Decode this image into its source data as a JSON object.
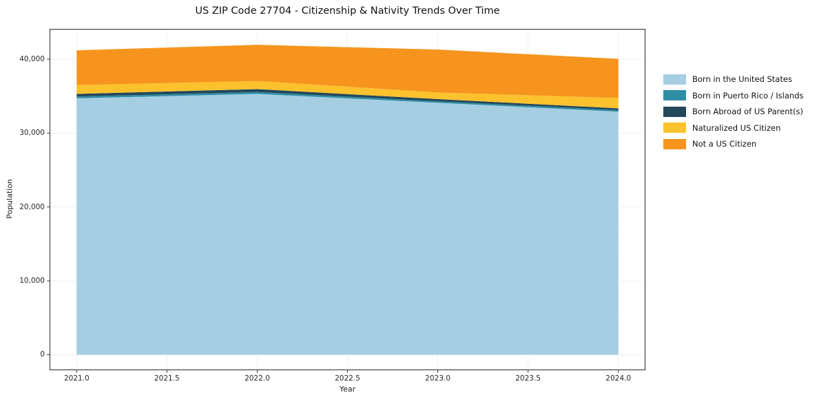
{
  "chart_data": {
    "type": "area",
    "stacked": true,
    "title": "US ZIP Code 27704 - Citizenship & Nativity Trends Over Time",
    "xlabel": "Year",
    "ylabel": "Population",
    "x": [
      2021,
      2022,
      2023,
      2024
    ],
    "series": [
      {
        "name": "Born in the United States",
        "color": "#a6cee3",
        "values": [
          34700,
          35300,
          34100,
          32900
        ]
      },
      {
        "name": "Born in Puerto Rico / Islands",
        "color": "#2f8ea5",
        "values": [
          250,
          250,
          200,
          200
        ]
      },
      {
        "name": "Born Abroad of US Parent(s)",
        "color": "#23485c",
        "values": [
          350,
          400,
          300,
          250
        ]
      },
      {
        "name": "Naturalized US Citizen",
        "color": "#fcc22e",
        "values": [
          1200,
          1100,
          900,
          1400
        ]
      },
      {
        "name": "Not a US Citizen",
        "color": "#f7941d",
        "values": [
          4700,
          4900,
          5800,
          5300
        ]
      }
    ],
    "totals": [
      41200,
      41950,
      41300,
      40050
    ],
    "xticks": [
      2021.0,
      2021.5,
      2022.0,
      2022.5,
      2023.0,
      2023.5,
      2024.0
    ],
    "xtick_labels": [
      "2021.0",
      "2021.5",
      "2022.0",
      "2022.5",
      "2023.0",
      "2023.5",
      "2024.0"
    ],
    "yticks": [
      0,
      10000,
      20000,
      30000,
      40000
    ],
    "ytick_labels": [
      "0",
      "10,000",
      "20,000",
      "30,000",
      "40,000"
    ],
    "xlim": [
      2020.85,
      2024.15
    ],
    "ylim": [
      -2100,
      44100
    ],
    "grid": true,
    "legend_position": "right"
  }
}
